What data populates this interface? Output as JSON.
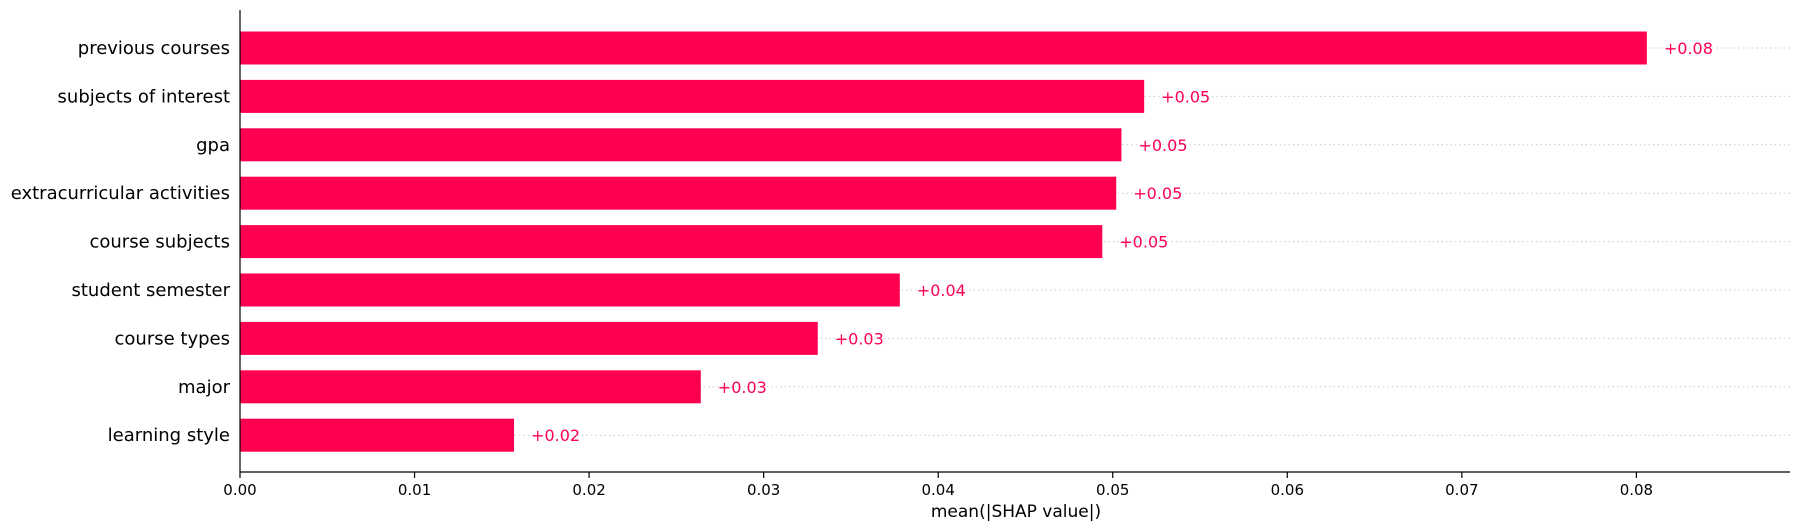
{
  "chart_data": {
    "type": "bar",
    "orientation": "horizontal",
    "categories": [
      "previous courses",
      "subjects of interest",
      "gpa",
      "extracurricular activities",
      "course subjects",
      "student semester",
      "course types",
      "major",
      "learning style"
    ],
    "values": [
      0.0806,
      0.0518,
      0.0505,
      0.0502,
      0.0494,
      0.0378,
      0.0331,
      0.0264,
      0.0157
    ],
    "data_labels": [
      "+0.08",
      "+0.05",
      "+0.05",
      "+0.05",
      "+0.05",
      "+0.04",
      "+0.03",
      "+0.03",
      "+0.02"
    ],
    "xlabel": "mean(|SHAP value|)",
    "ylabel": "",
    "xlim": [
      0,
      0.0888
    ],
    "x_ticks": [
      0.0,
      0.01,
      0.02,
      0.03,
      0.04,
      0.05,
      0.06,
      0.07,
      0.08
    ],
    "x_tick_labels": [
      "0.00",
      "0.01",
      "0.02",
      "0.03",
      "0.04",
      "0.05",
      "0.06",
      "0.07",
      "0.08"
    ],
    "bar_color": "#ff0051",
    "label_color": "#ff0051",
    "grid": "dotted horizontal guide lines per row"
  }
}
